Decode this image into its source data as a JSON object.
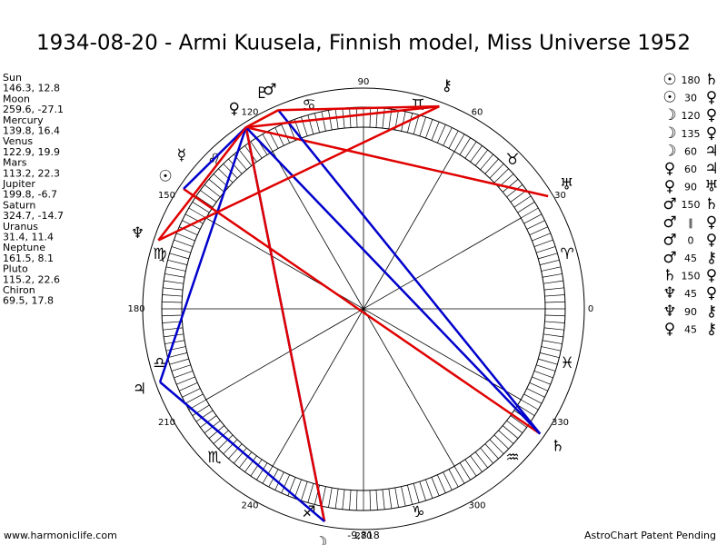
{
  "title": "1934-08-20 - Armi Kuusela, Finnish model, Miss Universe 1952",
  "planets": [
    {
      "name": "Sun",
      "glyph": "☉",
      "position": "146.3, 12.8"
    },
    {
      "name": "Moon",
      "glyph": "☽",
      "position": "259.6, -27.1"
    },
    {
      "name": "Mercury",
      "glyph": "☿",
      "position": "139.8, 16.4"
    },
    {
      "name": "Venus",
      "glyph": "♀",
      "position": "122.9, 19.9"
    },
    {
      "name": "Mars",
      "glyph": "♂",
      "position": "113.2, 22.3"
    },
    {
      "name": "Jupiter",
      "glyph": "♃",
      "position": "199.8, -6.7"
    },
    {
      "name": "Saturn",
      "glyph": "♄",
      "position": "324.7, -14.7"
    },
    {
      "name": "Uranus",
      "glyph": "♅",
      "position": "31.4, 11.4"
    },
    {
      "name": "Neptune",
      "glyph": "♆",
      "position": "161.5, 8.1"
    },
    {
      "name": "Pluto",
      "glyph": "♇",
      "position": "115.2, 22.6"
    },
    {
      "name": "Chiron",
      "glyph": "⚷",
      "position": "69.5, 17.8"
    }
  ],
  "aspects": [
    {
      "from": "☉",
      "angle": 180,
      "to": "♄"
    },
    {
      "from": "☉",
      "angle": 30,
      "to": "♀"
    },
    {
      "from": "☽",
      "angle": 120,
      "to": "♀"
    },
    {
      "from": "☽",
      "angle": 135,
      "to": "♀"
    },
    {
      "from": "☽",
      "angle": 60,
      "to": "♃"
    },
    {
      "from": "♀",
      "angle": 60,
      "to": "♃"
    },
    {
      "from": "♀",
      "angle": 90,
      "to": "♅"
    },
    {
      "from": "♂",
      "angle": 150,
      "to": "♄"
    },
    {
      "from": "♂",
      "angle": "∥",
      "to": "♀"
    },
    {
      "from": "♂",
      "angle": 0,
      "to": "♀"
    },
    {
      "from": "♂",
      "angle": 45,
      "to": "⚷"
    },
    {
      "from": "♄",
      "angle": 150,
      "to": "♀"
    },
    {
      "from": "♆",
      "angle": 45,
      "to": "♀"
    },
    {
      "from": "♆",
      "angle": 90,
      "to": "⚷"
    },
    {
      "from": "♀",
      "angle": 45,
      "to": "⚷"
    }
  ],
  "degree_labels": [
    0,
    30,
    60,
    90,
    120,
    150,
    180,
    210,
    240,
    270,
    300,
    330
  ],
  "signs": [
    "♈",
    "♉",
    "♊",
    "♋",
    "♌",
    "♍",
    "♎",
    "♏",
    "♐",
    "♑",
    "♒",
    "♓"
  ],
  "bottom_value": "-9,818",
  "footer_left": "www.harmoniclife.com",
  "footer_right": "AstroChart Patent Pending"
}
